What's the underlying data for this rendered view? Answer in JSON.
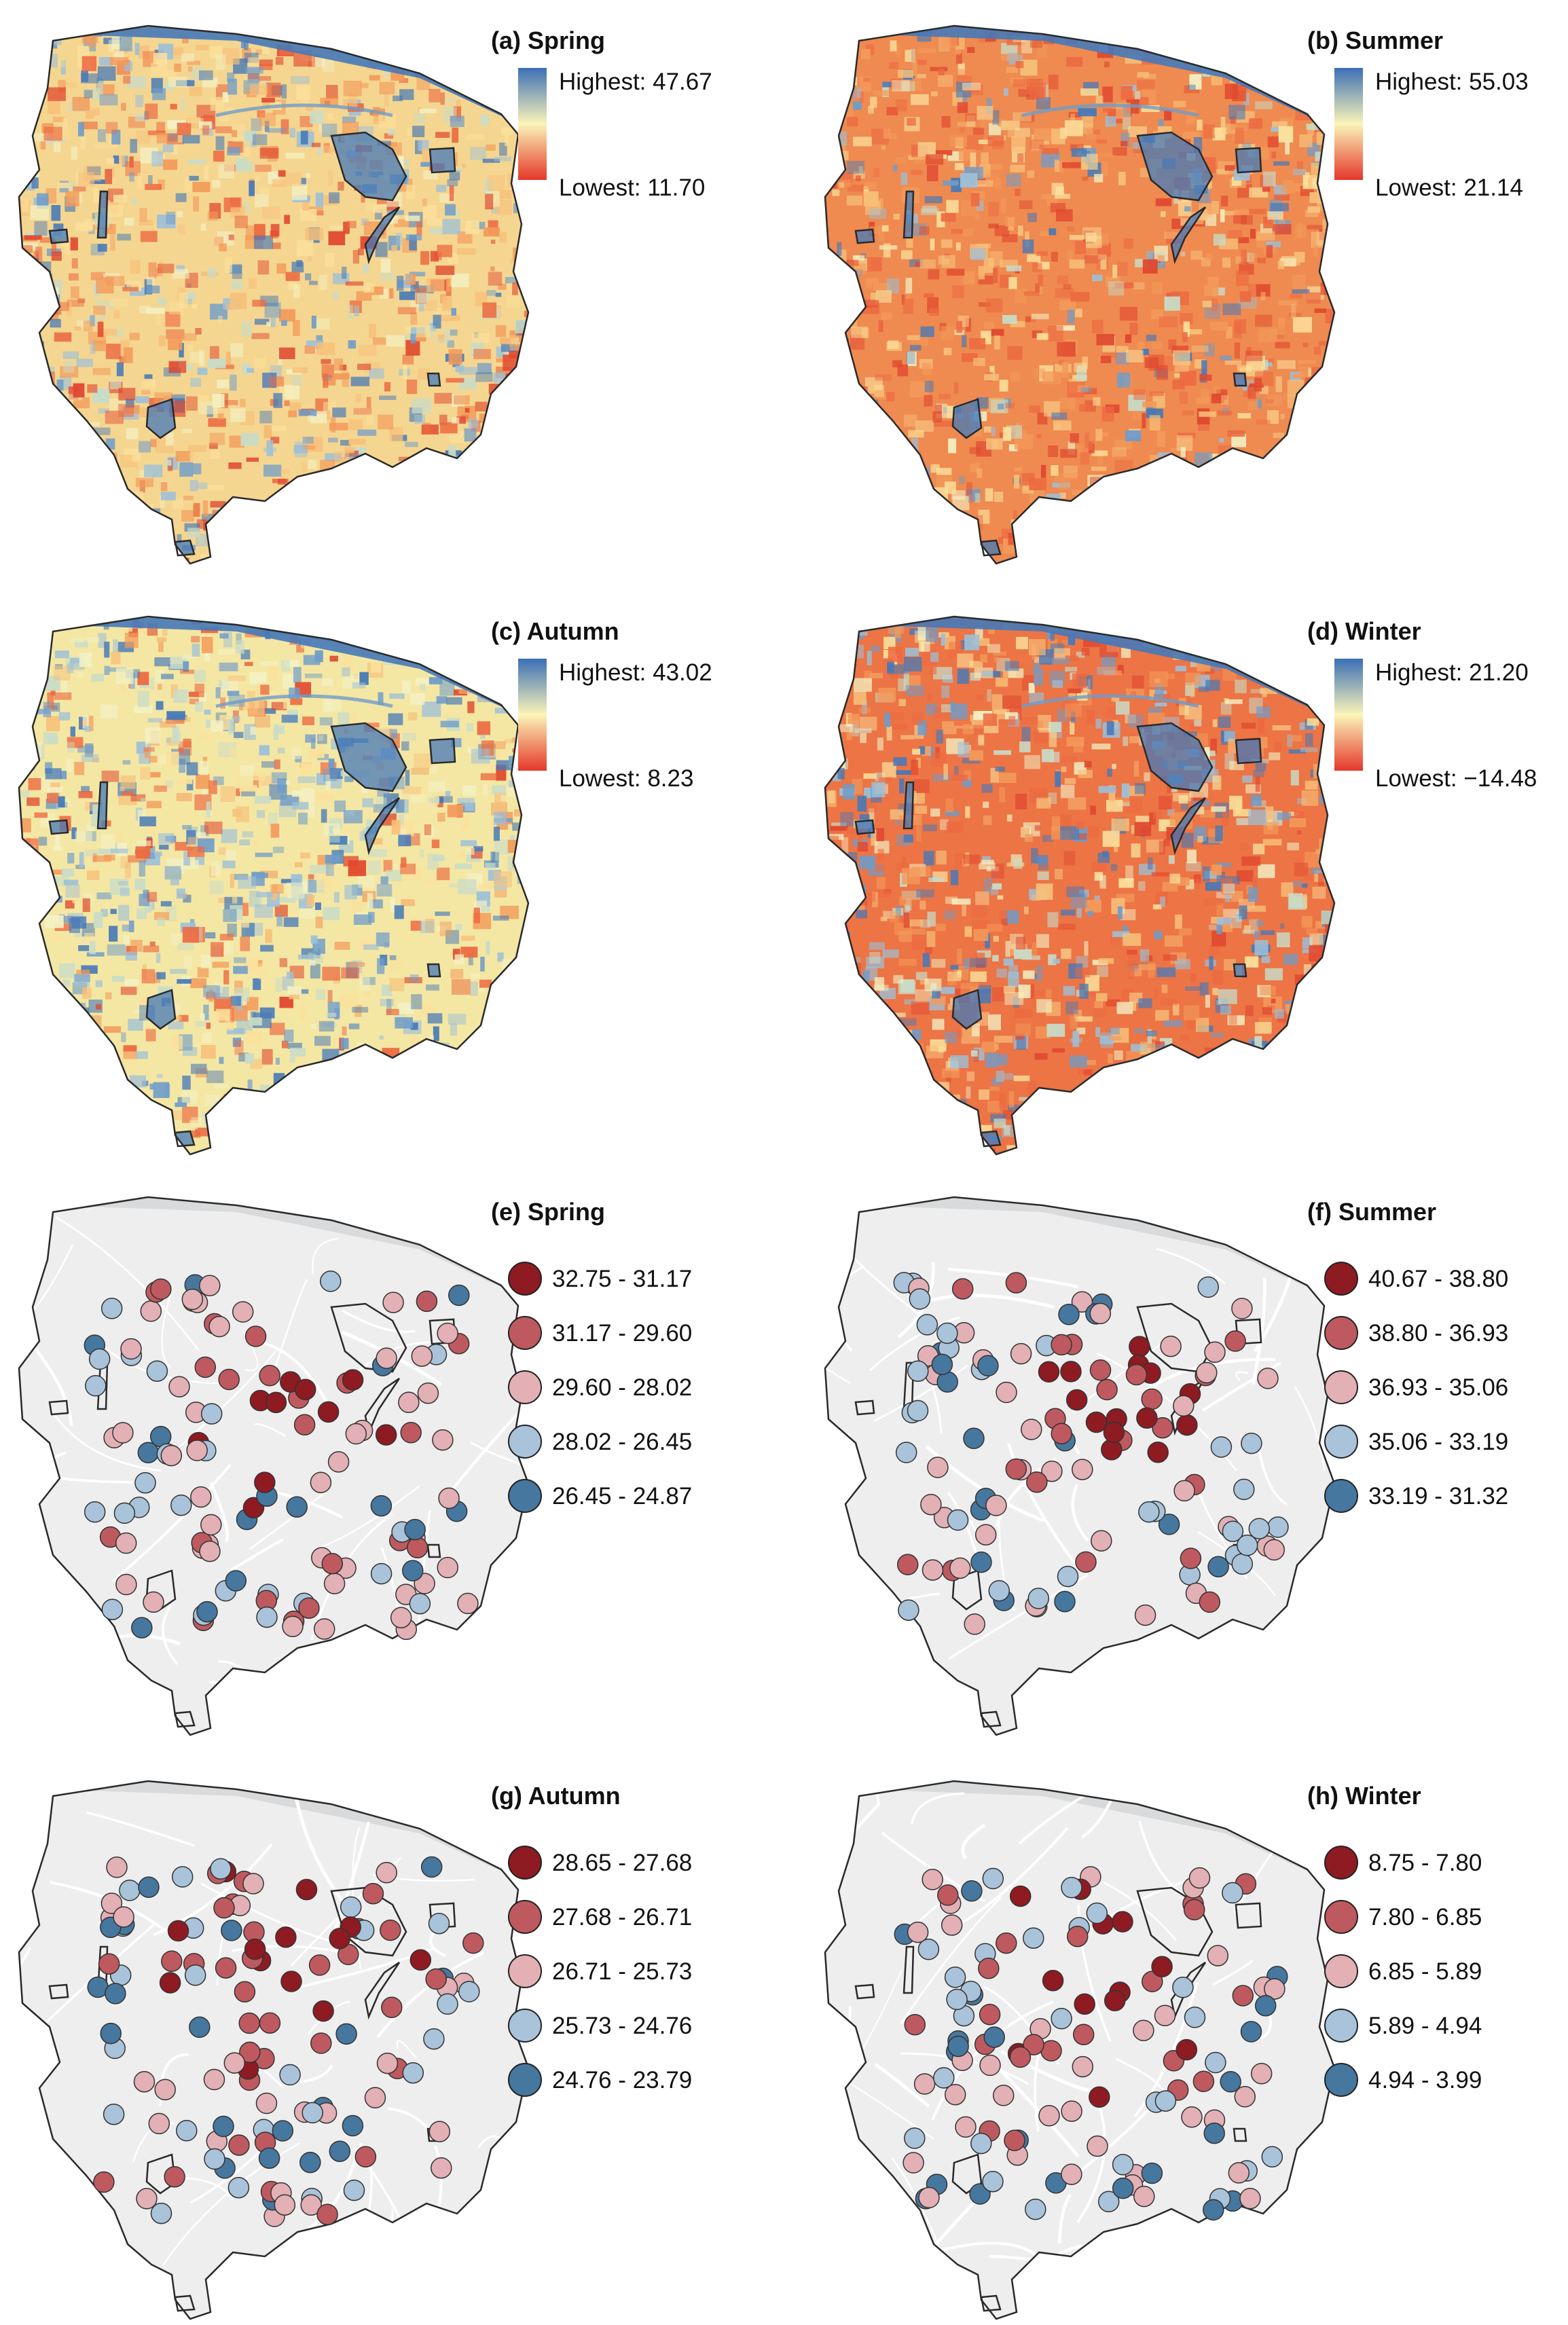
{
  "figure": {
    "panels": [
      {
        "id": "a",
        "kind": "raster",
        "title": "(a) Spring",
        "legend": {
          "high": "Highest: 47.67",
          "low": "Lowest: 11.70"
        },
        "dominant": "mixed"
      },
      {
        "id": "b",
        "kind": "raster",
        "title": "(b) Summer",
        "legend": {
          "high": "Highest: 55.03",
          "low": "Lowest: 21.14"
        },
        "dominant": "warm"
      },
      {
        "id": "c",
        "kind": "raster",
        "title": "(c) Autumn",
        "legend": {
          "high": "Highest: 43.02",
          "low": "Lowest: 8.23"
        },
        "dominant": "mild"
      },
      {
        "id": "d",
        "kind": "raster",
        "title": "(d) Winter",
        "legend": {
          "high": "Highest: 21.20",
          "low": "Lowest: −14.48"
        },
        "dominant": "warm-cool"
      },
      {
        "id": "e",
        "kind": "points",
        "title": "(e) Spring",
        "classes": [
          "32.75 - 31.17",
          "31.17 - 29.60",
          "29.60 - 28.02",
          "28.02 - 26.45",
          "26.45 - 24.87"
        ]
      },
      {
        "id": "f",
        "kind": "points",
        "title": "(f) Summer",
        "classes": [
          "40.67 - 38.80",
          "38.80 - 36.93",
          "36.93 - 35.06",
          "35.06 - 33.19",
          "33.19 - 31.32"
        ]
      },
      {
        "id": "g",
        "kind": "points",
        "title": "(g) Autumn",
        "classes": [
          "28.65 - 27.68",
          "27.68 - 26.71",
          "26.71 - 25.73",
          "25.73 - 24.76",
          "24.76 - 23.79"
        ]
      },
      {
        "id": "h",
        "kind": "points",
        "title": "(h) Winter",
        "classes": [
          "8.75 - 7.80",
          "7.80 - 6.85",
          "6.85 - 5.89",
          "5.89 - 4.94",
          "4.94 - 3.99"
        ]
      }
    ],
    "colors": {
      "ramp_high": "#3b6fb6",
      "ramp_mid": "#fbf5b8",
      "ramp_low": "#e5372a",
      "classes": [
        "#8e1b22",
        "#be5a5f",
        "#e2b0b5",
        "#a9c3da",
        "#46779f"
      ],
      "basemap": "#eeeeee",
      "outline": "#2a2a2a"
    }
  }
}
